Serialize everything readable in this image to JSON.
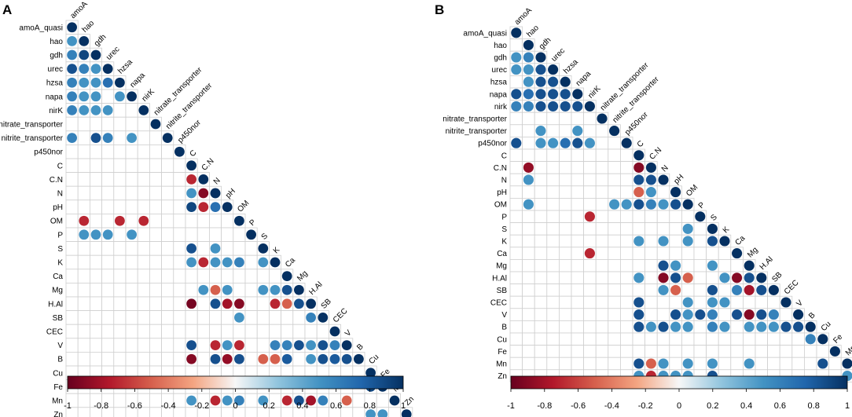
{
  "chart_data": [
    {
      "type": "heatmap",
      "subtype": "correlogram-lower-triangle",
      "panel": "A",
      "variables": [
        "amoA_quasi",
        "hao",
        "gdh",
        "urec",
        "hzsa",
        "napa",
        "nirK",
        "nitrate_transporter",
        "nitrite_transporter",
        "p450nor",
        "C",
        "C.N",
        "N",
        "pH",
        "OM",
        "P",
        "S",
        "K",
        "Ca",
        "Mg",
        "H.Al",
        "SB",
        "CEC",
        "V",
        "B",
        "Cu",
        "Fe",
        "Mn",
        "Zn"
      ],
      "diagonal_labels": [
        "amoA",
        "hao",
        "gdh",
        "urec",
        "hzsa",
        "napa",
        "nirK",
        "nitrate_transporter",
        "nitrite_transporter",
        "p450nor",
        "C",
        "C.N",
        "N",
        "pH",
        "OM",
        "P",
        "S",
        "K",
        "Ca",
        "Mg",
        "H.Al",
        "SB",
        "CEC",
        "V",
        "B",
        "Cu",
        "Fe",
        "Mn",
        "Zn"
      ],
      "cells": [
        [
          1,
          0,
          0.5
        ],
        [
          2,
          0,
          0.6
        ],
        [
          2,
          1,
          0.9
        ],
        [
          3,
          0,
          0.85
        ],
        [
          3,
          1,
          0.6
        ],
        [
          3,
          2,
          0.5
        ],
        [
          4,
          0,
          0.6
        ],
        [
          4,
          1,
          0.5
        ],
        [
          4,
          2,
          0.5
        ],
        [
          4,
          3,
          0.7
        ],
        [
          5,
          0,
          0.6
        ],
        [
          5,
          1,
          0.5
        ],
        [
          5,
          2,
          0.5
        ],
        [
          5,
          4,
          0.5
        ],
        [
          6,
          0,
          0.6
        ],
        [
          6,
          1,
          0.5
        ],
        [
          6,
          2,
          0.5
        ],
        [
          6,
          3,
          0.5
        ],
        [
          8,
          0,
          0.6
        ],
        [
          8,
          2,
          0.85
        ],
        [
          8,
          3,
          0.6
        ],
        [
          8,
          5,
          0.5
        ],
        [
          11,
          10,
          -0.7
        ],
        [
          12,
          10,
          0.5
        ],
        [
          12,
          11,
          -0.9
        ],
        [
          12,
          12,
          1
        ],
        [
          13,
          10,
          0.9
        ],
        [
          13,
          11,
          -0.7
        ],
        [
          13,
          12,
          0.7
        ],
        [
          14,
          1,
          -0.7
        ],
        [
          14,
          4,
          -0.7
        ],
        [
          14,
          6,
          -0.7
        ],
        [
          15,
          1,
          0.5
        ],
        [
          15,
          2,
          0.5
        ],
        [
          15,
          3,
          0.5
        ],
        [
          15,
          5,
          0.5
        ],
        [
          16,
          10,
          0.85
        ],
        [
          16,
          12,
          0.5
        ],
        [
          17,
          10,
          0.5
        ],
        [
          17,
          11,
          -0.7
        ],
        [
          17,
          12,
          0.5
        ],
        [
          17,
          13,
          0.5
        ],
        [
          17,
          14,
          0.6
        ],
        [
          17,
          16,
          0.5
        ],
        [
          19,
          11,
          0.5
        ],
        [
          19,
          12,
          -0.5
        ],
        [
          19,
          13,
          0.5
        ],
        [
          19,
          16,
          0.5
        ],
        [
          19,
          17,
          0.5
        ],
        [
          19,
          18,
          0.85
        ],
        [
          20,
          10,
          -0.95
        ],
        [
          20,
          12,
          0.85
        ],
        [
          20,
          13,
          -0.8
        ],
        [
          20,
          14,
          -0.9
        ],
        [
          20,
          17,
          -0.7
        ],
        [
          20,
          18,
          -0.5
        ],
        [
          20,
          19,
          0.85
        ],
        [
          21,
          14,
          0.5
        ],
        [
          21,
          20,
          0.6
        ],
        [
          23,
          10,
          0.85
        ],
        [
          23,
          12,
          -0.7
        ],
        [
          23,
          13,
          0.5
        ],
        [
          23,
          14,
          -0.7
        ],
        [
          23,
          17,
          0.6
        ],
        [
          23,
          18,
          0.6
        ],
        [
          23,
          19,
          0.85
        ],
        [
          23,
          20,
          0.5
        ],
        [
          23,
          21,
          0.85
        ],
        [
          23,
          22,
          0.6
        ],
        [
          24,
          10,
          -0.9
        ],
        [
          24,
          12,
          0.85
        ],
        [
          24,
          13,
          -0.85
        ],
        [
          24,
          14,
          0.85
        ],
        [
          24,
          16,
          -0.5
        ],
        [
          24,
          17,
          -0.5
        ],
        [
          24,
          18,
          0.8
        ],
        [
          24,
          20,
          0.5
        ],
        [
          24,
          21,
          0.85
        ],
        [
          24,
          22,
          0.8
        ],
        [
          24,
          23,
          0.85
        ],
        [
          26,
          25,
          0.9
        ],
        [
          27,
          10,
          0.5
        ],
        [
          27,
          12,
          -0.7
        ],
        [
          27,
          13,
          0.5
        ],
        [
          27,
          14,
          0.6
        ],
        [
          27,
          16,
          0.5
        ],
        [
          27,
          18,
          -0.7
        ],
        [
          27,
          19,
          0.85
        ],
        [
          27,
          20,
          -0.8
        ],
        [
          27,
          21,
          0.6
        ],
        [
          27,
          23,
          -0.5
        ],
        [
          28,
          25,
          0.5
        ],
        [
          28,
          26,
          0.5
        ]
      ],
      "colorbar": {
        "min": -1,
        "max": 1,
        "ticks": [
          "-1",
          "-0.8",
          "-0.6",
          "-0.4",
          "-0.2",
          "0",
          "0.2",
          "0.4",
          "0.6",
          "0.8",
          "1"
        ]
      }
    },
    {
      "type": "heatmap",
      "subtype": "correlogram-lower-triangle",
      "panel": "B",
      "variables": [
        "amoA_quasi",
        "hao",
        "gdh",
        "urec",
        "hzsa",
        "napa",
        "nirk",
        "nitrate_transporter",
        "nitrite_transporter",
        "p450nor",
        "C",
        "C.N",
        "N",
        "pH",
        "OM",
        "P",
        "S",
        "K",
        "Ca",
        "Mg",
        "H.Al",
        "SB",
        "CEC",
        "V",
        "B",
        "Cu",
        "Fe",
        "Mn",
        "Zn"
      ],
      "diagonal_labels": [
        "amoA",
        "hao",
        "gdh",
        "urec",
        "hzsa",
        "napa",
        "nirK",
        "nitrate_transporter",
        "nitrite_transporter",
        "p450nor",
        "C",
        "C.N",
        "N",
        "pH",
        "OM",
        "P",
        "S",
        "K",
        "Ca",
        "Mg",
        "H.Al",
        "SB",
        "CEC",
        "V",
        "B",
        "Cu",
        "Fe",
        "Mn",
        "Zn"
      ],
      "cells": [
        [
          2,
          0,
          0.5
        ],
        [
          2,
          1,
          0.6
        ],
        [
          3,
          0,
          0.5
        ],
        [
          3,
          1,
          0.5
        ],
        [
          3,
          2,
          0.85
        ],
        [
          4,
          1,
          0.5
        ],
        [
          4,
          2,
          0.85
        ],
        [
          4,
          3,
          0.85
        ],
        [
          5,
          0,
          0.85
        ],
        [
          5,
          1,
          0.7
        ],
        [
          5,
          2,
          0.85
        ],
        [
          5,
          3,
          0.85
        ],
        [
          5,
          4,
          0.85
        ],
        [
          6,
          0,
          0.6
        ],
        [
          6,
          1,
          0.6
        ],
        [
          6,
          2,
          0.85
        ],
        [
          6,
          3,
          0.85
        ],
        [
          6,
          4,
          0.85
        ],
        [
          6,
          5,
          0.85
        ],
        [
          8,
          2,
          0.5
        ],
        [
          8,
          5,
          0.5
        ],
        [
          9,
          0,
          0.85
        ],
        [
          9,
          2,
          0.5
        ],
        [
          9,
          3,
          0.5
        ],
        [
          9,
          4,
          0.7
        ],
        [
          9,
          5,
          0.85
        ],
        [
          9,
          6,
          0.5
        ],
        [
          11,
          1,
          -0.85
        ],
        [
          11,
          10,
          -0.9
        ],
        [
          12,
          1,
          0.5
        ],
        [
          12,
          10,
          0.85
        ],
        [
          12,
          11,
          0.85
        ],
        [
          13,
          10,
          -0.5
        ],
        [
          13,
          11,
          0.5
        ],
        [
          14,
          1,
          0.5
        ],
        [
          14,
          8,
          0.5
        ],
        [
          14,
          9,
          0.5
        ],
        [
          14,
          10,
          0.85
        ],
        [
          14,
          11,
          0.6
        ],
        [
          14,
          12,
          0.5
        ],
        [
          14,
          13,
          0.85
        ],
        [
          15,
          6,
          -0.7
        ],
        [
          16,
          14,
          0.5
        ],
        [
          17,
          10,
          0.5
        ],
        [
          17,
          12,
          0.5
        ],
        [
          17,
          14,
          0.5
        ],
        [
          17,
          16,
          0.85
        ],
        [
          18,
          6,
          -0.7
        ],
        [
          19,
          12,
          0.85
        ],
        [
          19,
          13,
          0.5
        ],
        [
          19,
          16,
          0.5
        ],
        [
          20,
          10,
          0.5
        ],
        [
          20,
          12,
          -0.9
        ],
        [
          20,
          13,
          0.85
        ],
        [
          20,
          14,
          -0.5
        ],
        [
          20,
          17,
          0.5
        ],
        [
          20,
          18,
          -0.9
        ],
        [
          20,
          19,
          0.85
        ],
        [
          21,
          12,
          0.5
        ],
        [
          21,
          13,
          -0.5
        ],
        [
          21,
          16,
          0.85
        ],
        [
          21,
          18,
          0.6
        ],
        [
          21,
          19,
          -0.8
        ],
        [
          21,
          20,
          0.85
        ],
        [
          22,
          10,
          0.85
        ],
        [
          22,
          14,
          0.5
        ],
        [
          22,
          16,
          0.5
        ],
        [
          22,
          17,
          0.5
        ],
        [
          23,
          10,
          0.85
        ],
        [
          23,
          13,
          0.85
        ],
        [
          23,
          14,
          0.5
        ],
        [
          23,
          15,
          0.85
        ],
        [
          23,
          16,
          0.6
        ],
        [
          23,
          18,
          0.85
        ],
        [
          23,
          19,
          -0.9
        ],
        [
          23,
          20,
          0.85
        ],
        [
          23,
          21,
          0.6
        ],
        [
          24,
          10,
          0.85
        ],
        [
          24,
          11,
          0.5
        ],
        [
          24,
          12,
          0.85
        ],
        [
          24,
          13,
          0.5
        ],
        [
          24,
          14,
          0.5
        ],
        [
          24,
          16,
          0.6
        ],
        [
          24,
          17,
          0.5
        ],
        [
          24,
          19,
          0.5
        ],
        [
          24,
          20,
          0.5
        ],
        [
          24,
          21,
          0.5
        ],
        [
          24,
          22,
          0.85
        ],
        [
          24,
          23,
          0.85
        ],
        [
          25,
          24,
          0.6
        ],
        [
          27,
          10,
          0.85
        ],
        [
          27,
          11,
          -0.5
        ],
        [
          27,
          12,
          0.5
        ],
        [
          27,
          14,
          0.5
        ],
        [
          27,
          16,
          0.5
        ],
        [
          27,
          19,
          0.5
        ],
        [
          27,
          25,
          0.85
        ],
        [
          28,
          10,
          0.5
        ],
        [
          28,
          11,
          -0.7
        ],
        [
          28,
          12,
          0.5
        ],
        [
          28,
          13,
          0.5
        ],
        [
          28,
          14,
          0.5
        ],
        [
          28,
          16,
          0.85
        ],
        [
          28,
          27,
          0.5
        ]
      ],
      "colorbar": {
        "min": -1,
        "max": 1,
        "ticks": [
          "-1",
          "-0.8",
          "-0.6",
          "-0.4",
          "-0.2",
          "0",
          "0.2",
          "0.4",
          "0.6",
          "0.8",
          "1"
        ]
      }
    }
  ],
  "colors": {
    "negative": "#67001f",
    "neutral": "#f7f7f7",
    "positive": "#053061",
    "grid": "#cfcfcf"
  }
}
